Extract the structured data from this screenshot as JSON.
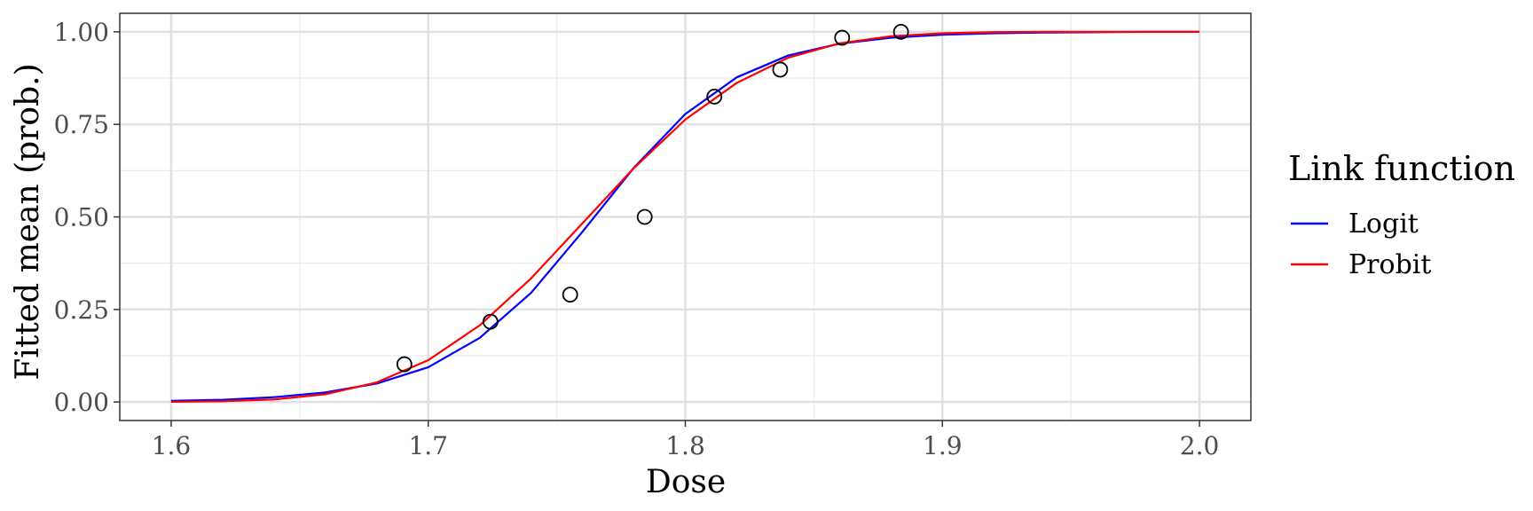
{
  "chart_data": {
    "type": "line",
    "xlabel": "Dose",
    "ylabel": "Fitted mean (prob.)",
    "xlim": [
      1.58,
      2.02
    ],
    "ylim": [
      -0.05,
      1.05
    ],
    "x_ticks": [
      1.6,
      1.7,
      1.8,
      1.9,
      2.0
    ],
    "x_tick_labels": [
      "1.6",
      "1.7",
      "1.8",
      "1.9",
      "2.0"
    ],
    "y_ticks": [
      0,
      0.25,
      0.5,
      0.75,
      1
    ],
    "y_tick_labels": [
      "0.00",
      "0.25",
      "0.50",
      "0.75",
      "1.00"
    ],
    "grid": true,
    "legend": {
      "title": "Link function",
      "position": "right"
    },
    "points": {
      "x": [
        1.6907,
        1.7242,
        1.7552,
        1.7842,
        1.8113,
        1.8369,
        1.861,
        1.8839
      ],
      "y": [
        0.102,
        0.217,
        0.29,
        0.5,
        0.825,
        0.898,
        0.984,
        1.0
      ]
    },
    "series": [
      {
        "name": "Logit",
        "color": "#0000ff",
        "x": [
          1.6,
          1.62,
          1.64,
          1.66,
          1.68,
          1.7,
          1.72,
          1.74,
          1.76,
          1.78,
          1.8,
          1.82,
          1.84,
          1.86,
          1.88,
          1.9,
          1.92,
          1.94,
          1.96,
          1.98,
          2.0
        ],
        "y": [
          0.003,
          0.006,
          0.013,
          0.026,
          0.05,
          0.094,
          0.173,
          0.295,
          0.46,
          0.633,
          0.778,
          0.877,
          0.936,
          0.968,
          0.984,
          0.992,
          0.996,
          0.998,
          0.999,
          1.0,
          1.0
        ]
      },
      {
        "name": "Probit",
        "color": "#ff0000",
        "x": [
          1.6,
          1.62,
          1.64,
          1.66,
          1.68,
          1.7,
          1.72,
          1.74,
          1.76,
          1.78,
          1.8,
          1.82,
          1.84,
          1.86,
          1.88,
          1.9,
          1.92,
          1.94,
          1.96,
          1.98,
          2.0
        ],
        "y": [
          0.0005,
          0.002,
          0.007,
          0.021,
          0.053,
          0.113,
          0.207,
          0.334,
          0.483,
          0.632,
          0.763,
          0.862,
          0.93,
          0.969,
          0.988,
          0.996,
          0.999,
          1.0,
          1.0,
          1.0,
          1.0
        ]
      }
    ]
  }
}
